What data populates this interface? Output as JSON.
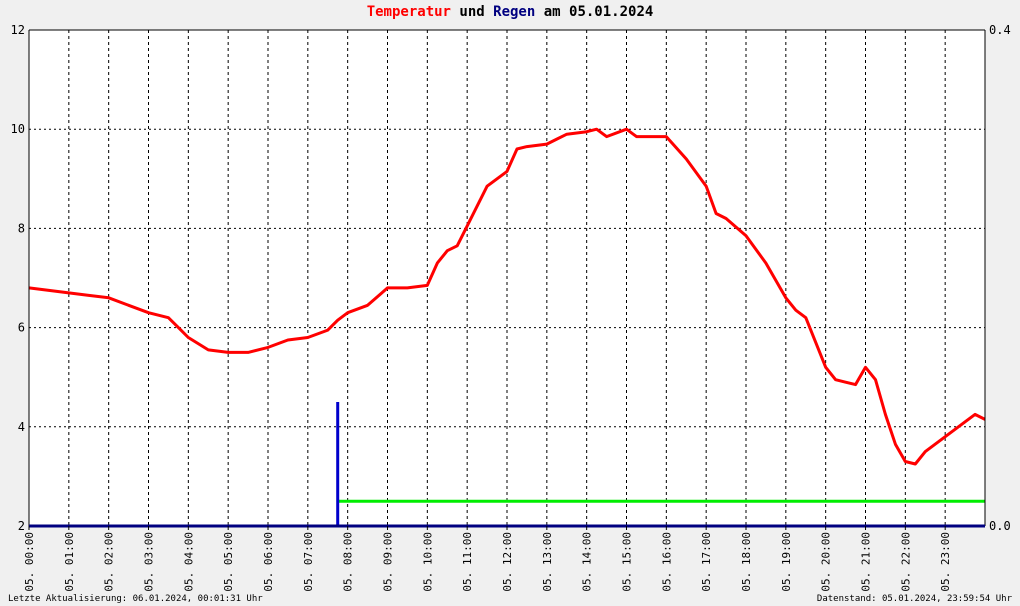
{
  "title": {
    "part1": "Temperatur",
    "part2": " und ",
    "part3": "Regen",
    "part4": " am 05.01.2024"
  },
  "colors": {
    "temperature": "#ff0000",
    "rain_bar": "#0000cc",
    "rain_total": "#00ee00",
    "axis": "#000080",
    "grid": "#000000",
    "title_temp": "#ff0000",
    "title_rain": "#000080"
  },
  "footer": {
    "left": "Letzte Aktualisierung: 06.01.2024, 00:01:31 Uhr",
    "right": "Datenstand: 05.01.2024, 23:59:54 Uhr"
  },
  "chart_data": {
    "type": "line",
    "x_unit": "hour of day (05.01.2024)",
    "xlim": [
      0,
      24
    ],
    "x_tick_labels": [
      "05. 00:00",
      "05. 01:00",
      "05. 02:00",
      "05. 03:00",
      "05. 04:00",
      "05. 05:00",
      "05. 06:00",
      "05. 07:00",
      "05. 08:00",
      "05. 09:00",
      "05. 10:00",
      "05. 11:00",
      "05. 12:00",
      "05. 13:00",
      "05. 14:00",
      "05. 15:00",
      "05. 16:00",
      "05. 17:00",
      "05. 18:00",
      "05. 19:00",
      "05. 20:00",
      "05. 21:00",
      "05. 22:00",
      "05. 23:00"
    ],
    "y_left": {
      "ylim": [
        2,
        12
      ],
      "ticks": [
        "2",
        "4",
        "6",
        "8",
        "10",
        "12"
      ]
    },
    "y_right": {
      "ylim": [
        0,
        0.4
      ],
      "ticks": [
        "0.0",
        "0.4"
      ]
    },
    "grid": true,
    "series": [
      {
        "kind": "temperature",
        "axis": "left",
        "x": [
          0,
          0.5,
          1,
          1.5,
          2,
          2.5,
          3,
          3.5,
          3.75,
          4,
          4.5,
          5,
          5.5,
          6,
          6.5,
          7,
          7.5,
          7.75,
          8,
          8.5,
          9,
          9.25,
          9.5,
          10,
          10.25,
          10.5,
          10.75,
          11,
          11.5,
          12,
          12.25,
          12.5,
          13,
          13.25,
          13.5,
          14,
          14.25,
          14.5,
          15,
          15.25,
          15.5,
          16,
          16.5,
          17,
          17.25,
          17.5,
          18,
          18.5,
          19,
          19.25,
          19.5,
          20,
          20.25,
          20.5,
          20.75,
          21,
          21.25,
          21.5,
          21.75,
          22,
          22.25,
          22.5,
          23,
          23.25,
          23.5,
          23.75,
          24
        ],
        "values": [
          6.8,
          6.75,
          6.7,
          6.65,
          6.6,
          6.45,
          6.3,
          6.2,
          6.0,
          5.8,
          5.55,
          5.5,
          5.5,
          5.6,
          5.75,
          5.8,
          5.95,
          6.15,
          6.3,
          6.45,
          6.8,
          6.8,
          6.8,
          6.85,
          7.3,
          7.55,
          7.65,
          8.05,
          8.85,
          9.15,
          9.6,
          9.65,
          9.7,
          9.8,
          9.9,
          9.95,
          10.0,
          9.85,
          10.0,
          9.85,
          9.85,
          9.85,
          9.4,
          8.85,
          8.3,
          8.2,
          7.85,
          7.3,
          6.6,
          6.35,
          6.2,
          5.2,
          4.95,
          4.9,
          4.85,
          5.2,
          4.95,
          4.25,
          3.65,
          3.3,
          3.25,
          3.5,
          3.8,
          3.95,
          4.1,
          4.25,
          4.15
        ]
      },
      {
        "kind": "rain_event",
        "axis": "right",
        "x": [
          7.75
        ],
        "values": [
          0.1
        ]
      },
      {
        "kind": "rain_total",
        "axis": "right",
        "x": [
          7.75,
          24
        ],
        "values": [
          0.02,
          0.02
        ]
      }
    ]
  }
}
